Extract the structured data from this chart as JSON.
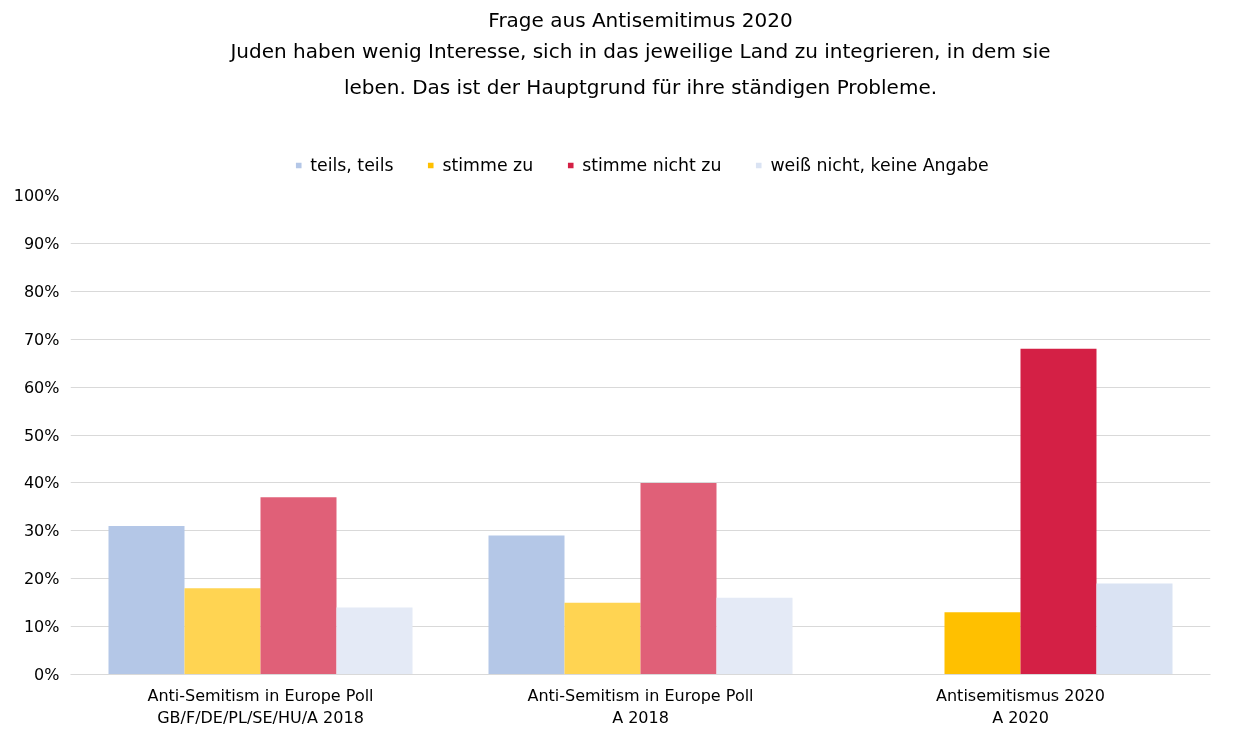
{
  "chart_data": {
    "type": "bar",
    "title": "Frage aus Antisemitimus 2020",
    "subtitle": "Juden haben wenig Interesse, sich in das jeweilige Land zu integrieren, in dem sie\nleben. Das ist der Hauptgrund für ihre ständigen Probleme.",
    "categories": [
      "Anti-Semitism in Europe Poll\nGB/F/DE/PL/SE/HU/A 2018",
      "Anti-Semitism in Europe Poll\nA 2018",
      "Antisemitismus 2020\nA 2020"
    ],
    "series": [
      {
        "name": "teils, teils",
        "color": "#b4c7e7",
        "colors": [
          "#b4c7e7",
          "#b4c7e7",
          "#8faadc"
        ],
        "values": [
          31,
          29,
          null
        ]
      },
      {
        "name": "stimme zu",
        "color": "#ffc000",
        "colors": [
          "#ffd452",
          "#ffd452",
          "#ffc000"
        ],
        "values": [
          18,
          15,
          13
        ]
      },
      {
        "name": "stimme nicht zu",
        "color": "#d42045",
        "colors": [
          "#e06078",
          "#e06078",
          "#d42045"
        ],
        "values": [
          37,
          40,
          68
        ]
      },
      {
        "name": "weiß nicht, keine Angabe",
        "color": "#dae3f3",
        "colors": [
          "#e4eaf6",
          "#e4eaf6",
          "#dae3f3"
        ],
        "values": [
          14,
          16,
          19
        ]
      }
    ],
    "ylim": [
      0,
      100
    ],
    "yticks": [
      {
        "value": 0,
        "label": "0%"
      },
      {
        "value": 10,
        "label": "10%"
      },
      {
        "value": 20,
        "label": "20%"
      },
      {
        "value": 30,
        "label": "30%"
      },
      {
        "value": 40,
        "label": "40%"
      },
      {
        "value": 50,
        "label": "50%"
      },
      {
        "value": 60,
        "label": "60%"
      },
      {
        "value": 70,
        "label": "70%"
      },
      {
        "value": 80,
        "label": "80%"
      },
      {
        "value": 90,
        "label": "90%"
      },
      {
        "value": 100,
        "label": "100%"
      }
    ],
    "grid": "y",
    "legend": "top"
  }
}
